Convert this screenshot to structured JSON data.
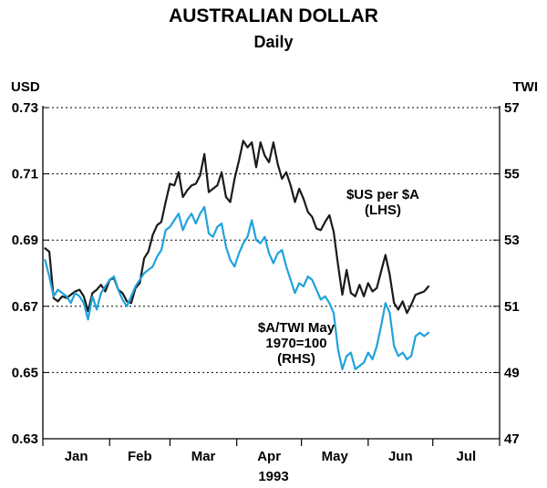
{
  "chart_data": {
    "type": "line",
    "title": "AUSTRALIAN DOLLAR",
    "subtitle": "Daily",
    "left_axis_label": "USD",
    "right_axis_label": "TWI",
    "year_label": "1993",
    "months": [
      "Jan",
      "Feb",
      "Mar",
      "Apr",
      "May",
      "Jun",
      "Jul"
    ],
    "x_range_days": [
      0,
      212
    ],
    "ylim_left": [
      0.63,
      0.73
    ],
    "ylim_right": [
      47,
      57
    ],
    "y_ticks_left": [
      "0.73",
      "0.71",
      "0.69",
      "0.67",
      "0.65",
      "0.63"
    ],
    "y_ticks_right": [
      "57",
      "55",
      "53",
      "51",
      "49",
      "47"
    ],
    "grid": "dotted horizontal",
    "colors": {
      "usd": "#1a1a1a",
      "twi": "#1fa3dc"
    },
    "series": [
      {
        "key": "usd",
        "annotation": [
          "$US per $A",
          "(LHS)"
        ],
        "axis": "left",
        "x": [
          1,
          3,
          5,
          7,
          9,
          11,
          13,
          15,
          17,
          19,
          21,
          23,
          25,
          27,
          29,
          31,
          33,
          35,
          37,
          39,
          41,
          43,
          45,
          47,
          49,
          51,
          53,
          55,
          57,
          59,
          61,
          63,
          65,
          67,
          69,
          71,
          73,
          75,
          77,
          79,
          81,
          83,
          85,
          87,
          89,
          91,
          93,
          95,
          97,
          99,
          101,
          103,
          105,
          107,
          109,
          111,
          113,
          115,
          117,
          119,
          121,
          123,
          125,
          127,
          129,
          131,
          133,
          135,
          137,
          139,
          141,
          143,
          145,
          147,
          149,
          151,
          153,
          155,
          157,
          159,
          161,
          163,
          165,
          167,
          169,
          171,
          173,
          175,
          177,
          179
        ],
        "values": [
          0.6875,
          0.6865,
          0.6725,
          0.6715,
          0.673,
          0.6725,
          0.6735,
          0.6745,
          0.675,
          0.673,
          0.6685,
          0.674,
          0.675,
          0.6765,
          0.6745,
          0.678,
          0.6785,
          0.675,
          0.674,
          0.6715,
          0.671,
          0.6755,
          0.677,
          0.6845,
          0.6865,
          0.6915,
          0.6945,
          0.6955,
          0.7015,
          0.707,
          0.7065,
          0.7105,
          0.703,
          0.705,
          0.7065,
          0.707,
          0.7095,
          0.716,
          0.7045,
          0.7055,
          0.7065,
          0.7105,
          0.703,
          0.7015,
          0.7085,
          0.714,
          0.72,
          0.718,
          0.7195,
          0.712,
          0.7195,
          0.7155,
          0.7135,
          0.7195,
          0.713,
          0.7085,
          0.7105,
          0.7065,
          0.7015,
          0.7055,
          0.7025,
          0.6985,
          0.697,
          0.6935,
          0.693,
          0.6955,
          0.6975,
          0.6925,
          0.6825,
          0.6735,
          0.681,
          0.674,
          0.673,
          0.6765,
          0.673,
          0.677,
          0.6745,
          0.6755,
          0.6805,
          0.6855,
          0.6795,
          0.671,
          0.669,
          0.6715,
          0.668,
          0.6705,
          0.6735,
          0.674,
          0.6745,
          0.676
        ]
      },
      {
        "key": "twi",
        "annotation": [
          "$A/TWI May",
          "1970=100",
          "(RHS)"
        ],
        "axis": "right",
        "x": [
          1,
          3,
          5,
          7,
          9,
          11,
          13,
          15,
          17,
          19,
          21,
          23,
          25,
          27,
          29,
          31,
          33,
          35,
          37,
          39,
          41,
          43,
          45,
          47,
          49,
          51,
          53,
          55,
          57,
          59,
          61,
          63,
          65,
          67,
          69,
          71,
          73,
          75,
          77,
          79,
          81,
          83,
          85,
          87,
          89,
          91,
          93,
          95,
          97,
          99,
          101,
          103,
          105,
          107,
          109,
          111,
          113,
          115,
          117,
          119,
          121,
          123,
          125,
          127,
          129,
          131,
          133,
          135,
          137,
          139,
          141,
          143,
          145,
          147,
          149,
          151,
          153,
          155,
          157,
          159,
          161,
          163,
          165,
          167,
          169,
          171,
          173,
          175,
          177,
          179
        ],
        "values": [
          52.4,
          51.9,
          51.3,
          51.5,
          51.4,
          51.3,
          51.1,
          51.4,
          51.3,
          51.1,
          50.6,
          51.3,
          50.9,
          51.4,
          51.6,
          51.8,
          51.9,
          51.5,
          51.2,
          51.0,
          51.3,
          51.6,
          51.8,
          52.0,
          52.1,
          52.2,
          52.5,
          52.7,
          53.3,
          53.4,
          53.6,
          53.8,
          53.3,
          53.6,
          53.8,
          53.5,
          53.8,
          54.0,
          53.2,
          53.1,
          53.4,
          53.5,
          52.8,
          52.4,
          52.2,
          52.6,
          52.9,
          53.1,
          53.6,
          53.0,
          52.9,
          53.1,
          52.6,
          52.3,
          52.6,
          52.7,
          52.2,
          51.8,
          51.4,
          51.7,
          51.6,
          51.9,
          51.8,
          51.5,
          51.2,
          51.3,
          51.1,
          50.8,
          49.7,
          49.1,
          49.5,
          49.6,
          49.1,
          49.2,
          49.3,
          49.6,
          49.4,
          49.8,
          50.4,
          51.1,
          50.8,
          49.8,
          49.5,
          49.6,
          49.4,
          49.5,
          50.1,
          50.2,
          50.1,
          50.2
        ]
      }
    ]
  }
}
